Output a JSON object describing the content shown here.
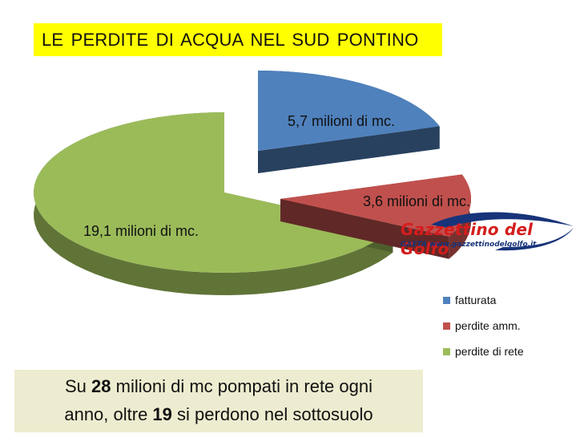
{
  "title": "LE  PERDITE  DI ACQUA NEL SUD PONTINO",
  "chart_data": {
    "type": "pie",
    "unit": "milioni di mc.",
    "slices": [
      {
        "label": "fatturata",
        "value": 5.7,
        "data_label": "5,7 milioni di mc.",
        "color": "#4f81bd"
      },
      {
        "label": "perdite amm.",
        "value": 3.6,
        "data_label": "3,6 milioni di mc.",
        "color": "#c0504d"
      },
      {
        "label": "perdite di rete",
        "value": 19.1,
        "data_label": "19,1 milioni di mc.",
        "color": "#9bbb59"
      }
    ],
    "legend_position": "bottom-right",
    "style": "3d-exploded"
  },
  "legend": [
    {
      "label": "fatturata",
      "color": "#4f81bd"
    },
    {
      "label": "perdite amm.",
      "color": "#c0504d"
    },
    {
      "label": "perdite di rete",
      "color": "#9bbb59"
    }
  ],
  "note": {
    "line1_pre": "Su ",
    "line1_bold": "28",
    "line1_post": " milioni di mc  pompati in rete ogni",
    "line2_pre": "anno, oltre ",
    "line2_bold": "19",
    "line2_post": " si perdono nel sottosuolo"
  },
  "watermark": {
    "title": "Gazzettino del Golfo",
    "sub_city": "GAETA",
    "sub_url": "www.gazzettinodelgolfo.it"
  }
}
